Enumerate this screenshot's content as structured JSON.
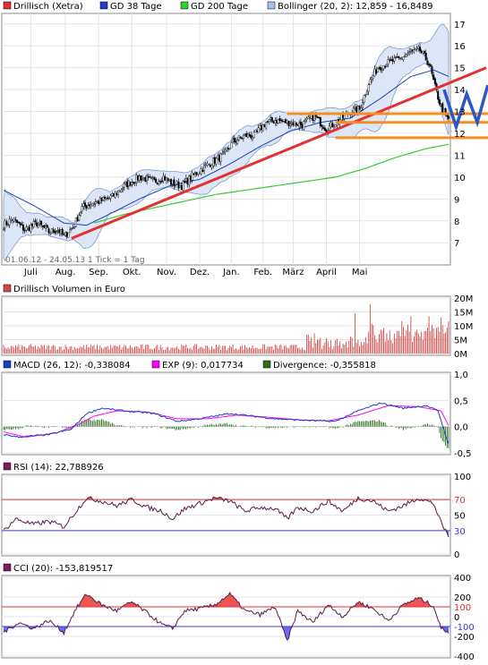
{
  "chart_data": [
    {
      "type": "candlestick",
      "legend": [
        {
          "label": "Drillisch (Xetra)",
          "color": "#dd3333"
        },
        {
          "label": "GD 38 Tage",
          "color": "#1f3fbf"
        },
        {
          "label": "GD 200 Tage",
          "color": "#33cc33"
        },
        {
          "label": "Bollinger (20, 2): 12,859 - 16,8489",
          "color": "#a8c0e8"
        }
      ],
      "range_note": "01.06.12 - 24.05.13   1 Tick = 1 Tag",
      "x_ticks": [
        "Juli",
        "Aug.",
        "Sep.",
        "Okt.",
        "Nov.",
        "Dez.",
        "Jan.",
        "Feb.",
        "März",
        "April",
        "Mai"
      ],
      "y_ticks": [
        7,
        8,
        9,
        10,
        11,
        12,
        13,
        14,
        15,
        16,
        17
      ],
      "ylim": [
        6.6,
        17.4
      ],
      "price_anchors": [
        [
          0,
          7.8
        ],
        [
          6,
          8.1
        ],
        [
          14,
          7.6
        ],
        [
          22,
          7.9
        ],
        [
          30,
          7.5
        ],
        [
          36,
          7.6
        ],
        [
          40,
          7.3
        ],
        [
          46,
          7.7
        ],
        [
          52,
          8.6
        ],
        [
          58,
          8.8
        ],
        [
          64,
          8.9
        ],
        [
          72,
          9.1
        ],
        [
          80,
          9.6
        ],
        [
          90,
          10.0
        ],
        [
          100,
          9.8
        ],
        [
          106,
          10.0
        ],
        [
          112,
          9.7
        ],
        [
          118,
          9.6
        ],
        [
          126,
          10.1
        ],
        [
          136,
          10.6
        ],
        [
          146,
          11.0
        ],
        [
          152,
          11.6
        ],
        [
          160,
          11.9
        ],
        [
          166,
          11.9
        ],
        [
          174,
          12.5
        ],
        [
          180,
          12.6
        ],
        [
          190,
          12.5
        ],
        [
          198,
          12.4
        ],
        [
          206,
          12.8
        ],
        [
          214,
          12.2
        ],
        [
          222,
          12.6
        ],
        [
          230,
          13.0
        ],
        [
          236,
          13.1
        ],
        [
          242,
          14.3
        ],
        [
          248,
          15.0
        ],
        [
          254,
          15.2
        ],
        [
          262,
          15.4
        ],
        [
          270,
          15.7
        ],
        [
          276,
          15.8
        ],
        [
          282,
          15.2
        ],
        [
          286,
          14.1
        ],
        [
          290,
          13.2
        ],
        [
          295,
          12.6
        ]
      ],
      "gd38_anchors": [
        [
          0,
          9.4
        ],
        [
          20,
          8.7
        ],
        [
          40,
          7.9
        ],
        [
          55,
          7.8
        ],
        [
          70,
          8.3
        ],
        [
          90,
          9.0
        ],
        [
          110,
          9.6
        ],
        [
          130,
          9.9
        ],
        [
          150,
          10.6
        ],
        [
          170,
          11.4
        ],
        [
          190,
          12.1
        ],
        [
          210,
          12.5
        ],
        [
          230,
          12.7
        ],
        [
          250,
          13.6
        ],
        [
          270,
          14.6
        ],
        [
          285,
          14.9
        ],
        [
          295,
          14.6
        ]
      ],
      "gd200_anchors": [
        [
          60,
          7.9
        ],
        [
          80,
          8.3
        ],
        [
          100,
          8.6
        ],
        [
          120,
          8.9
        ],
        [
          140,
          9.2
        ],
        [
          160,
          9.4
        ],
        [
          180,
          9.6
        ],
        [
          200,
          9.8
        ],
        [
          220,
          10.0
        ],
        [
          240,
          10.4
        ],
        [
          260,
          10.9
        ],
        [
          280,
          11.3
        ],
        [
          295,
          11.5
        ]
      ],
      "annotations": [
        {
          "type": "trendline",
          "color": "#e33131",
          "from": [
            45,
            7.2
          ],
          "to": [
            320,
            15.0
          ]
        },
        {
          "type": "hline",
          "color": "#f39021",
          "value": 12.9,
          "from": 188
        },
        {
          "type": "hline",
          "color": "#f39021",
          "value": 12.5,
          "from": 220
        },
        {
          "type": "hline",
          "color": "#f39021",
          "value": 11.8,
          "from": 220
        },
        {
          "type": "zigzag",
          "color": "#2d56c9",
          "points": [
            [
              292,
              14.0
            ],
            [
              300,
              12.3
            ],
            [
              307,
              13.8
            ],
            [
              314,
              12.5
            ],
            [
              321,
              14.2
            ]
          ]
        }
      ]
    },
    {
      "type": "bar",
      "title": "Drillisch Volumen in Euro",
      "y_ticks": [
        "0M",
        "5M",
        "10M",
        "15M",
        "20M"
      ],
      "ylim": [
        0,
        20
      ],
      "bar_color": "#d04848"
    },
    {
      "type": "line",
      "legend": [
        {
          "label": "MACD (26, 12): -0,338084",
          "color": "#1f3fbf"
        },
        {
          "label": "EXP (9): 0,017734",
          "color": "#ff00ff"
        },
        {
          "label": "Divergence: -0,355818",
          "color": "#2d6e1e"
        }
      ],
      "y_ticks": [
        "1,0",
        "0,5",
        "0,0",
        "-0,5"
      ],
      "ylim": [
        -0.5,
        1.0
      ],
      "macd_anchors": [
        [
          0,
          -0.15
        ],
        [
          10,
          -0.2
        ],
        [
          30,
          -0.15
        ],
        [
          45,
          -0.05
        ],
        [
          55,
          0.25
        ],
        [
          65,
          0.35
        ],
        [
          80,
          0.3
        ],
        [
          100,
          0.25
        ],
        [
          115,
          0.1
        ],
        [
          130,
          0.15
        ],
        [
          150,
          0.25
        ],
        [
          165,
          0.2
        ],
        [
          180,
          0.15
        ],
        [
          200,
          0.12
        ],
        [
          220,
          0.1
        ],
        [
          235,
          0.3
        ],
        [
          250,
          0.45
        ],
        [
          265,
          0.35
        ],
        [
          280,
          0.4
        ],
        [
          288,
          0.3
        ],
        [
          295,
          -0.34
        ]
      ],
      "exp_anchors": [
        [
          0,
          -0.1
        ],
        [
          15,
          -0.2
        ],
        [
          35,
          -0.12
        ],
        [
          50,
          0.05
        ],
        [
          60,
          0.2
        ],
        [
          75,
          0.3
        ],
        [
          95,
          0.28
        ],
        [
          115,
          0.15
        ],
        [
          135,
          0.15
        ],
        [
          155,
          0.22
        ],
        [
          175,
          0.18
        ],
        [
          195,
          0.13
        ],
        [
          215,
          0.11
        ],
        [
          235,
          0.22
        ],
        [
          255,
          0.4
        ],
        [
          275,
          0.38
        ],
        [
          290,
          0.3
        ],
        [
          295,
          0.02
        ]
      ]
    },
    {
      "type": "line",
      "legend": [
        {
          "label": "RSI (14): 22,788926",
          "color": "#7a1f5c"
        }
      ],
      "y_ticks": [
        "0",
        "30",
        "50",
        "70",
        "100"
      ],
      "ylim": [
        0,
        100
      ],
      "ref_lines": [
        {
          "value": 70,
          "color": "#e33131",
          "label": "70"
        },
        {
          "value": 30,
          "color": "#3b3bd6",
          "label": "30"
        }
      ],
      "rsi_anchors": [
        [
          0,
          30
        ],
        [
          8,
          45
        ],
        [
          20,
          38
        ],
        [
          30,
          42
        ],
        [
          40,
          35
        ],
        [
          48,
          55
        ],
        [
          55,
          72
        ],
        [
          65,
          68
        ],
        [
          75,
          62
        ],
        [
          85,
          70
        ],
        [
          95,
          60
        ],
        [
          105,
          55
        ],
        [
          112,
          45
        ],
        [
          120,
          58
        ],
        [
          130,
          65
        ],
        [
          140,
          72
        ],
        [
          150,
          68
        ],
        [
          160,
          55
        ],
        [
          170,
          60
        ],
        [
          180,
          58
        ],
        [
          188,
          45
        ],
        [
          195,
          60
        ],
        [
          205,
          55
        ],
        [
          215,
          68
        ],
        [
          225,
          55
        ],
        [
          235,
          72
        ],
        [
          245,
          68
        ],
        [
          255,
          55
        ],
        [
          265,
          62
        ],
        [
          275,
          72
        ],
        [
          285,
          65
        ],
        [
          290,
          40
        ],
        [
          295,
          23
        ]
      ]
    },
    {
      "type": "line",
      "legend": [
        {
          "label": "CCI (20): -153,819517",
          "color": "#7a1f5c"
        }
      ],
      "y_ticks": [
        "400",
        "200",
        "100",
        "0",
        "-100",
        "-200",
        "-400"
      ],
      "ylim": [
        -400,
        400
      ],
      "ref_lines": [
        {
          "value": 100,
          "color": "#e33131",
          "label": "100"
        },
        {
          "value": -100,
          "color": "#3b3bd6",
          "label": "-100"
        }
      ],
      "cci_anchors": [
        [
          0,
          -160
        ],
        [
          10,
          -60
        ],
        [
          20,
          -120
        ],
        [
          30,
          -40
        ],
        [
          40,
          -160
        ],
        [
          48,
          80
        ],
        [
          55,
          230
        ],
        [
          65,
          120
        ],
        [
          75,
          60
        ],
        [
          85,
          150
        ],
        [
          95,
          40
        ],
        [
          105,
          -80
        ],
        [
          112,
          -120
        ],
        [
          120,
          60
        ],
        [
          130,
          80
        ],
        [
          140,
          120
        ],
        [
          150,
          230
        ],
        [
          160,
          60
        ],
        [
          170,
          20
        ],
        [
          180,
          100
        ],
        [
          188,
          -250
        ],
        [
          195,
          60
        ],
        [
          205,
          -60
        ],
        [
          215,
          120
        ],
        [
          225,
          0
        ],
        [
          235,
          150
        ],
        [
          245,
          80
        ],
        [
          255,
          -40
        ],
        [
          265,
          120
        ],
        [
          275,
          190
        ],
        [
          285,
          110
        ],
        [
          290,
          -120
        ],
        [
          295,
          -154
        ]
      ]
    }
  ]
}
